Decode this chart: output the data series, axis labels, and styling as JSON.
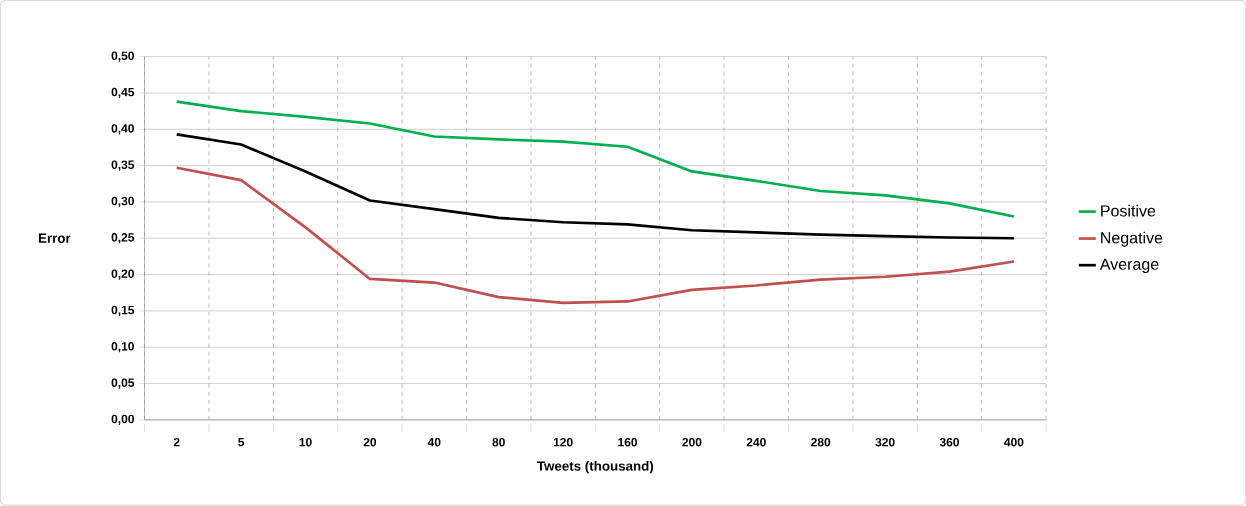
{
  "chart_data": {
    "type": "line",
    "xlabel": "Tweets (thousand)",
    "ylabel": "Error",
    "categories": [
      "2",
      "5",
      "10",
      "20",
      "40",
      "80",
      "120",
      "160",
      "200",
      "240",
      "280",
      "320",
      "360",
      "400"
    ],
    "series": [
      {
        "name": "Positive",
        "color": "#00b050",
        "values": [
          0.438,
          0.425,
          0.417,
          0.408,
          0.39,
          0.386,
          0.383,
          0.376,
          0.342,
          0.329,
          0.315,
          0.309,
          0.298,
          0.28
        ]
      },
      {
        "name": "Negative",
        "color": "#c0504d",
        "values": [
          0.347,
          0.33,
          0.265,
          0.194,
          0.189,
          0.169,
          0.161,
          0.163,
          0.179,
          0.185,
          0.193,
          0.197,
          0.204,
          0.218
        ]
      },
      {
        "name": "Average",
        "color": "#000000",
        "values": [
          0.393,
          0.379,
          0.342,
          0.302,
          0.29,
          0.278,
          0.272,
          0.269,
          0.261,
          0.258,
          0.255,
          0.253,
          0.251,
          0.25
        ]
      }
    ],
    "ylim": [
      0,
      0.5
    ],
    "yticks": [
      {
        "value": 0,
        "label": "0,00"
      },
      {
        "value": 0.05,
        "label": "0,05"
      },
      {
        "value": 0.1,
        "label": "0,10"
      },
      {
        "value": 0.15,
        "label": "0,15"
      },
      {
        "value": 0.2,
        "label": "0,20"
      },
      {
        "value": 0.25,
        "label": "0,25"
      },
      {
        "value": 0.3,
        "label": "0,30"
      },
      {
        "value": 0.35,
        "label": "0,35"
      },
      {
        "value": 0.4,
        "label": "0,40"
      },
      {
        "value": 0.45,
        "label": "0,45"
      },
      {
        "value": 0.5,
        "label": "0,50"
      }
    ],
    "grid": true,
    "legend": "right",
    "marker": "none",
    "line_style": "solid"
  }
}
